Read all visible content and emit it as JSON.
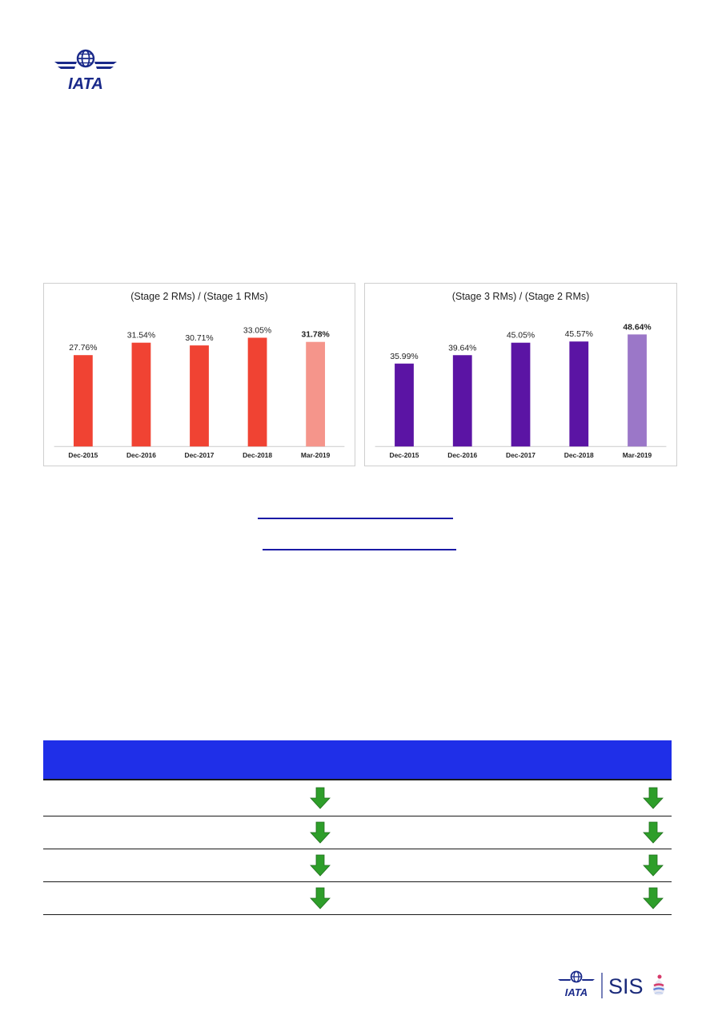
{
  "header": {
    "logo_text": "IATA"
  },
  "chart_data": [
    {
      "type": "bar",
      "title": "(Stage 2 RMs) / (Stage 1 RMs)",
      "categories": [
        "Dec-2015",
        "Dec-2016",
        "Dec-2017",
        "Dec-2018",
        "Mar-2019"
      ],
      "values": [
        27.76,
        31.54,
        30.71,
        33.05,
        31.78
      ],
      "labels": [
        "27.76%",
        "31.54%",
        "30.71%",
        "33.05%",
        "31.78%"
      ],
      "ylim": [
        0,
        35
      ],
      "colors": [
        "#f04333",
        "#f04333",
        "#f04333",
        "#f04333",
        "#f5958b"
      ],
      "highlight_last": true
    },
    {
      "type": "bar",
      "title": "(Stage 3 RMs) / (Stage 2 RMs)",
      "categories": [
        "Dec-2015",
        "Dec-2016",
        "Dec-2017",
        "Dec-2018",
        "Mar-2019"
      ],
      "values": [
        35.99,
        39.64,
        45.05,
        45.57,
        48.64
      ],
      "labels": [
        "35.99%",
        "39.64%",
        "45.05%",
        "45.57%",
        "48.64%"
      ],
      "ylim": [
        0,
        50
      ],
      "colors": [
        "#5b14a4",
        "#5b14a4",
        "#5b14a4",
        "#5b14a4",
        "#9b77c8"
      ],
      "highlight_last": true
    }
  ],
  "table": {
    "header_color": "#1f2fe8",
    "arrow_color": "#2e9e2a",
    "arrow_icon": "green-down-arrow-icon",
    "rows": 4
  },
  "footer": {
    "logo_text": "IATA",
    "product_text": "SIS"
  }
}
